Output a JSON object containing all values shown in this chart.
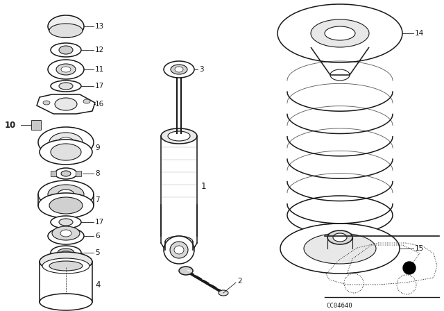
{
  "bg_color": "#ffffff",
  "line_color": "#1a1a1a",
  "diagram_code": "CC04640",
  "figsize": [
    6.4,
    4.48
  ],
  "dpi": 100,
  "lw": 0.8,
  "label_fontsize": 7.5,
  "label_fontsize_bold": 8.5
}
